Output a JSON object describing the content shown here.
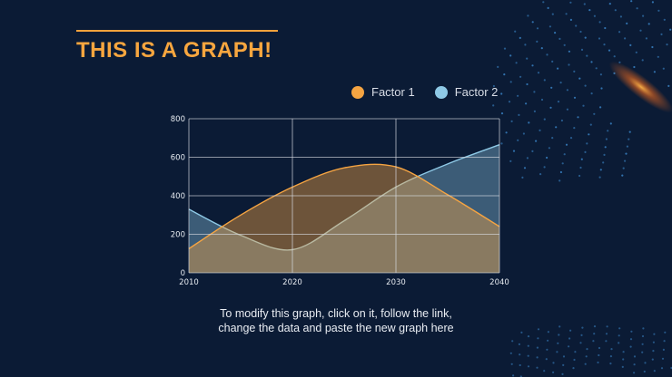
{
  "slide": {
    "title": "THIS IS A GRAPH!",
    "caption_line1": "To modify this graph, click on it, follow the link,",
    "caption_line2": "change the data and paste the new graph here"
  },
  "colors": {
    "background": "#0b1b35",
    "accent": "#f7a63f",
    "factor1": "#f5a442",
    "factor2": "#8ec9e6"
  },
  "chart_data": {
    "type": "area",
    "title": "",
    "xlabel": "",
    "ylabel": "",
    "x": [
      2010,
      2015,
      2020,
      2025,
      2030,
      2035,
      2040
    ],
    "xticks": [
      2010,
      2020,
      2030,
      2040
    ],
    "yticks": [
      0,
      200,
      400,
      600,
      800
    ],
    "xlim": [
      2010,
      2040
    ],
    "ylim": [
      0,
      800
    ],
    "grid": true,
    "legend_position": "top-right",
    "series": [
      {
        "name": "Factor 1",
        "values": [
          125,
          300,
          445,
          545,
          550,
          405,
          240
        ]
      },
      {
        "name": "Factor 2",
        "values": [
          330,
          195,
          120,
          270,
          445,
          565,
          665
        ]
      }
    ]
  }
}
